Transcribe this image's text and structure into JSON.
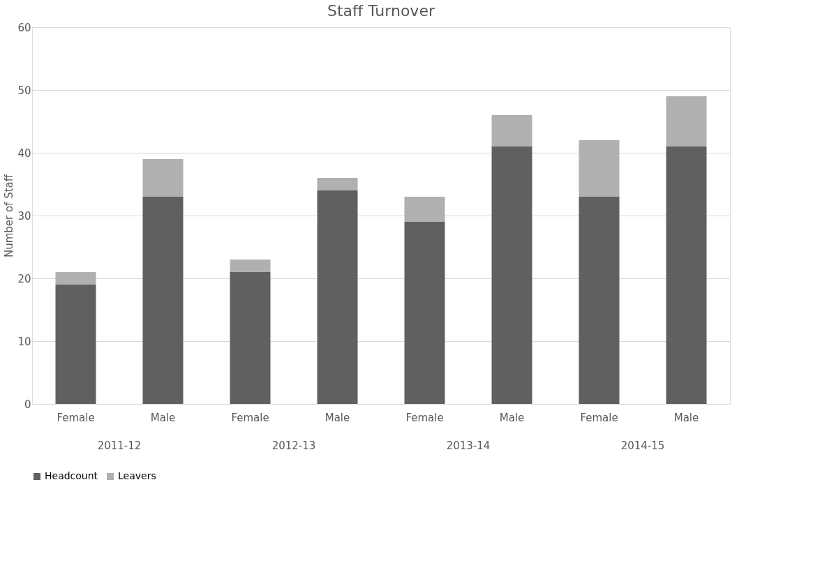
{
  "chart_data": {
    "type": "bar",
    "title": "Staff Turnover",
    "ylabel": "Number of Staff",
    "categories": [
      "Female",
      "Male",
      "Female",
      "Male",
      "Female",
      "Male",
      "Female",
      "Male"
    ],
    "annotations": [
      "2011-12",
      "2012-13",
      "2013-14",
      "2014-15"
    ],
    "stacked": true,
    "series": [
      {
        "name": "Headcount",
        "color": "#606060",
        "values": [
          19,
          33,
          21,
          34,
          29,
          41,
          33,
          41
        ]
      },
      {
        "name": "Leavers",
        "color": "#b0b0b0",
        "values": [
          2,
          6,
          2,
          2,
          4,
          5,
          9,
          8
        ]
      }
    ],
    "ylim": [
      0,
      60
    ],
    "yticks": [
      0,
      10,
      20,
      30,
      40,
      50,
      60
    ],
    "grid": "y",
    "legend": "bottom"
  }
}
